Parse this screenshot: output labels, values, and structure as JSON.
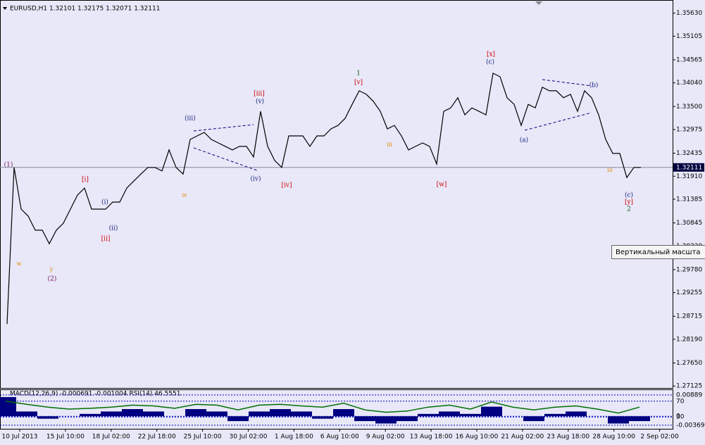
{
  "chart_data": {
    "type": "line",
    "title": "EURUSD,H1  1.32101 1.32175 1.32071 1.32111",
    "ylim": [
      1.2708,
      1.3593
    ],
    "yticks": [
      {
        "value": 1.3563,
        "label": "1.35630"
      },
      1.35105,
      1.34565,
      {
        "value": 1.3404,
        "label": "1.34040"
      },
      {
        "value": 1.335,
        "label": "1.33500"
      },
      1.32975,
      1.32435,
      {
        "value": 1.3191,
        "label": "1.31910"
      },
      1.31385,
      1.30845,
      {
        "value": 1.3032,
        "label": "1.30320"
      },
      {
        "value": 1.2978,
        "label": "1.29780"
      },
      1.29255,
      1.28715,
      {
        "value": 1.2819,
        "label": "1.28190"
      },
      {
        "value": 1.2765,
        "label": "1.27650"
      },
      1.27125
    ],
    "current_price": 1.32111,
    "x_labels": [
      "10 Jul 2013",
      "15 Jul 10:00",
      "18 Jul 02:00",
      "22 Jul 18:00",
      "25 Jul 10:00",
      "30 Jul 02:00",
      "1 Aug 18:00",
      "6 Aug 10:00",
      "9 Aug 02:00",
      "13 Aug 18:00",
      "16 Aug 10:00",
      "21 Aug 02:00",
      "23 Aug 18:00",
      "28 Aug 10:00",
      "2 Sep 02:00"
    ],
    "series": [
      {
        "color": "#000000",
        "values": [
          1.2854,
          1.3211,
          1.3116,
          1.31,
          1.3068,
          1.3068,
          1.3037,
          1.3068,
          1.3084,
          1.3116,
          1.3148,
          1.3164,
          1.3116,
          1.3116,
          1.3116,
          1.3132,
          1.3132,
          1.3164,
          1.318,
          1.3196,
          1.3211,
          1.3211,
          1.3203,
          1.3251,
          1.3211,
          1.3196,
          1.3275,
          1.3283,
          1.3291,
          1.3275,
          1.3267,
          1.3259,
          1.3251,
          1.3259,
          1.3259,
          1.3235,
          1.3339,
          1.3259,
          1.3227,
          1.3211,
          1.3283,
          1.3283,
          1.3283,
          1.3259,
          1.3283,
          1.3283,
          1.3299,
          1.3307,
          1.3323,
          1.3355,
          1.3386,
          1.3378,
          1.3362,
          1.3339,
          1.3299,
          1.3307,
          1.3283,
          1.3251,
          1.3259,
          1.3267,
          1.3259,
          1.3219,
          1.3339,
          1.3347,
          1.337,
          1.3331,
          1.3347,
          1.3339,
          1.3331,
          1.3426,
          1.3418,
          1.337,
          1.3355,
          1.3307,
          1.3355,
          1.3347,
          1.3394,
          1.3386,
          1.3386,
          1.337,
          1.3378,
          1.3339,
          1.3386,
          1.337,
          1.3331,
          1.3275,
          1.3243,
          1.3243,
          1.3188,
          1.3211,
          1.3211
        ]
      }
    ],
    "indicator": {
      "title": "MACD(12,26,9) -0.000691 -0.001004  RSI(14) 46.5551",
      "macd": {
        "color": "#000080",
        "ylim": [
          -0.0052,
          0.0112
        ],
        "ticks": [
          0.00889,
          0,
          -0.003695
        ],
        "values": [
          0.008,
          0.002,
          -0.001,
          0,
          0.001,
          0.002,
          0.003,
          0.002,
          0,
          0.003,
          0.002,
          -0.002,
          0.002,
          0.003,
          0.002,
          -0.001,
          0.003,
          -0.002,
          -0.003,
          -0.002,
          0.001,
          0.002,
          0.001,
          0.004,
          0,
          -0.002,
          0.001,
          0.002,
          0,
          -0.003,
          -0.002
        ]
      },
      "rsi": {
        "color": "#007000",
        "ylim": [
          0,
          100
        ],
        "ticks": [
          70,
          30
        ],
        "values": [
          70,
          62,
          55,
          50,
          52,
          55,
          60,
          58,
          52,
          62,
          60,
          48,
          60,
          62,
          58,
          55,
          65,
          48,
          42,
          45,
          55,
          60,
          50,
          68,
          55,
          48,
          55,
          58,
          50,
          40,
          55
        ]
      }
    }
  },
  "annotations": [
    "(1)",
    "(2)",
    "[i]",
    "[ii]",
    "[iii]",
    "[iv]",
    "[v]",
    "[w]",
    "[x]",
    "[y]",
    "1",
    "2",
    "(iii)",
    "(iv)",
    "(v)",
    "(i)",
    "(ii)",
    "(a)",
    "(b)",
    "(c)",
    "(c)",
    "w",
    "y",
    "iv",
    "iii",
    "iii"
  ],
  "tooltip": "Вертикальный масшта"
}
